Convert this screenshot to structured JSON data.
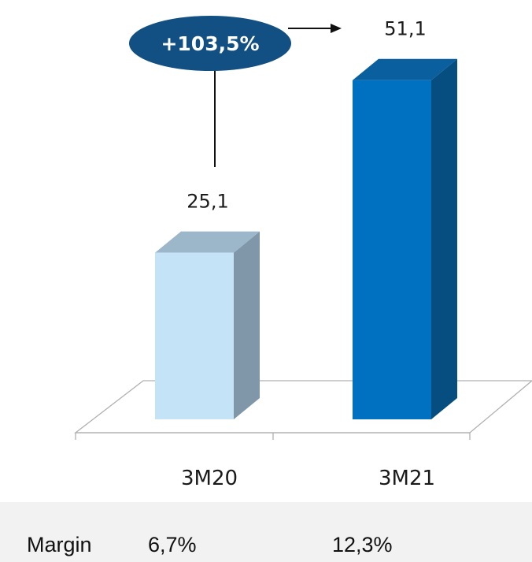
{
  "chart_data": {
    "type": "bar",
    "style": "3d-column",
    "categories": [
      "3M20",
      "3M21"
    ],
    "values": [
      25.1,
      51.1
    ],
    "value_labels": [
      "25,1",
      "51,1"
    ],
    "bar_colors": [
      "#c5e3f7",
      "#0070c0"
    ],
    "side_colors": [
      "#7f97a8",
      "#064d80"
    ],
    "top_colors": [
      "#9cb7ca",
      "#0a5f9e"
    ],
    "annotation": {
      "text": "+103,5%",
      "color": "#124f82"
    },
    "title": "",
    "xlabel": "",
    "ylabel": "",
    "grid": false,
    "legend": "none"
  },
  "footer": {
    "label": "Margin",
    "values": [
      "6,7%",
      "12,3%"
    ]
  }
}
